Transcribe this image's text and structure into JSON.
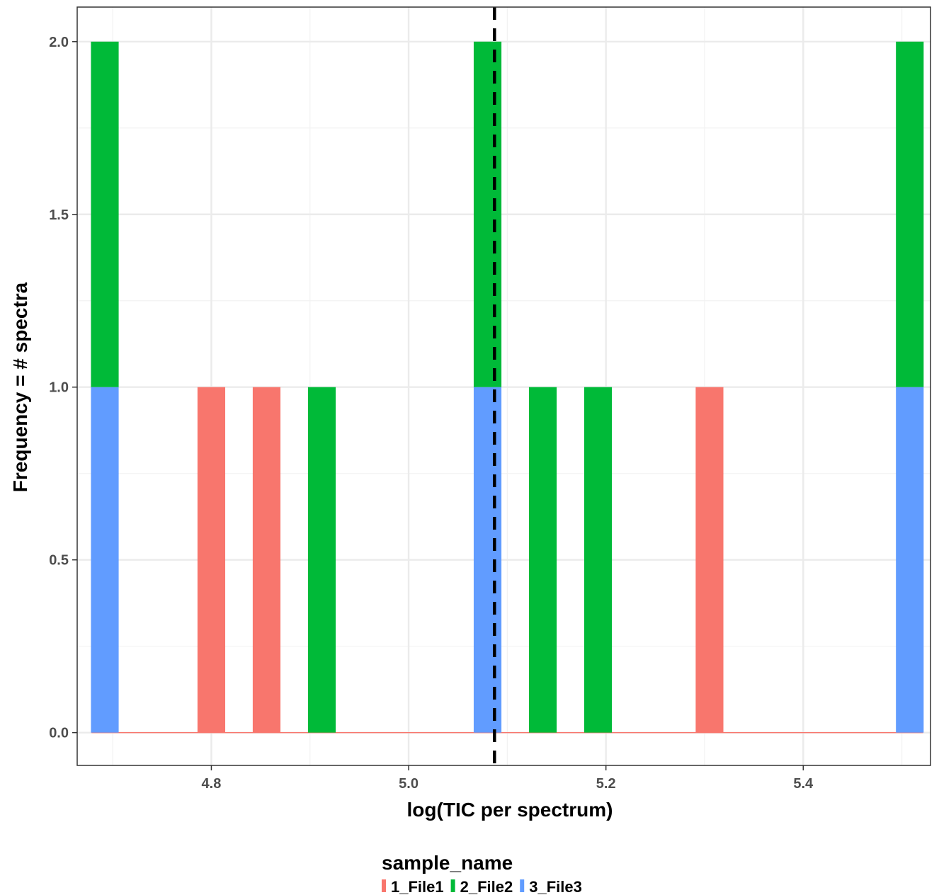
{
  "chart_data": {
    "type": "bar",
    "subtype": "stacked-histogram",
    "xlabel": "log(TIC per spectrum)",
    "ylabel": "Frequency = # spectra",
    "xlim": [
      4.664,
      5.529
    ],
    "ylim": [
      -0.095,
      2.1
    ],
    "bin_width": 0.0281,
    "x_ticks": [
      {
        "value": 4.8,
        "label": "4.8"
      },
      {
        "value": 5.0,
        "label": "5.0"
      },
      {
        "value": 5.2,
        "label": "5.2"
      },
      {
        "value": 5.4,
        "label": "5.4"
      }
    ],
    "y_ticks": [
      {
        "value": 0.0,
        "label": "0.0"
      },
      {
        "value": 0.5,
        "label": "0.5"
      },
      {
        "value": 1.0,
        "label": "1.0"
      },
      {
        "value": 1.5,
        "label": "1.5"
      },
      {
        "value": 2.0,
        "label": "2.0"
      }
    ],
    "bin_range": [
      4.6785,
      5.5215
    ],
    "legend": {
      "title": "sample_name",
      "position": "bottom"
    },
    "series": [
      {
        "name": "1_File1",
        "color": "#F8766D",
        "bins": [
          {
            "x": 4.8,
            "count": 1
          },
          {
            "x": 4.856,
            "count": 1
          },
          {
            "x": 5.305,
            "count": 1
          }
        ]
      },
      {
        "name": "2_File2",
        "color": "#00BA38",
        "bins": [
          {
            "x": 4.692,
            "count": 1
          },
          {
            "x": 4.912,
            "count": 1
          },
          {
            "x": 5.08,
            "count": 1
          },
          {
            "x": 5.136,
            "count": 1
          },
          {
            "x": 5.192,
            "count": 1
          },
          {
            "x": 5.508,
            "count": 1
          }
        ]
      },
      {
        "name": "3_File3",
        "color": "#619CFF",
        "bins": [
          {
            "x": 4.692,
            "count": 1
          },
          {
            "x": 5.08,
            "count": 1
          },
          {
            "x": 5.508,
            "count": 1
          }
        ]
      }
    ],
    "vline": {
      "x": 5.087,
      "style": "dashed",
      "color": "#000000"
    },
    "grid": true
  }
}
